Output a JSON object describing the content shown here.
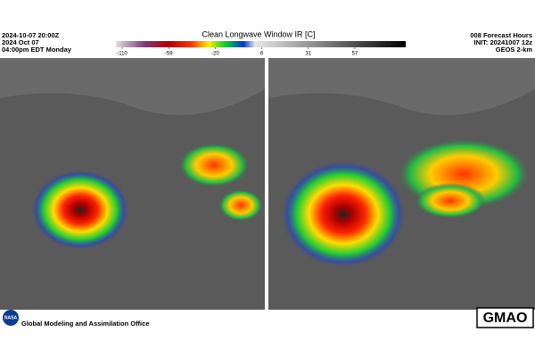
{
  "header": {
    "valid_time": "2024-10-07 20:00Z",
    "date": "2024 Oct 07",
    "local_time": "04:00pm EDT  Monday",
    "title": "Clean Longwave Window IR [C]",
    "forecast": "008 Forecast Hours",
    "init": "INIT: 20241007  12z",
    "model": "GEOS  2-km"
  },
  "colorbar": {
    "ticks": [
      -110,
      -59,
      -20,
      6,
      31,
      57
    ]
  },
  "footer": {
    "org": "Global Modeling and Assimilation Office",
    "logo_left": "NASA",
    "logo_right": "GMAO"
  }
}
